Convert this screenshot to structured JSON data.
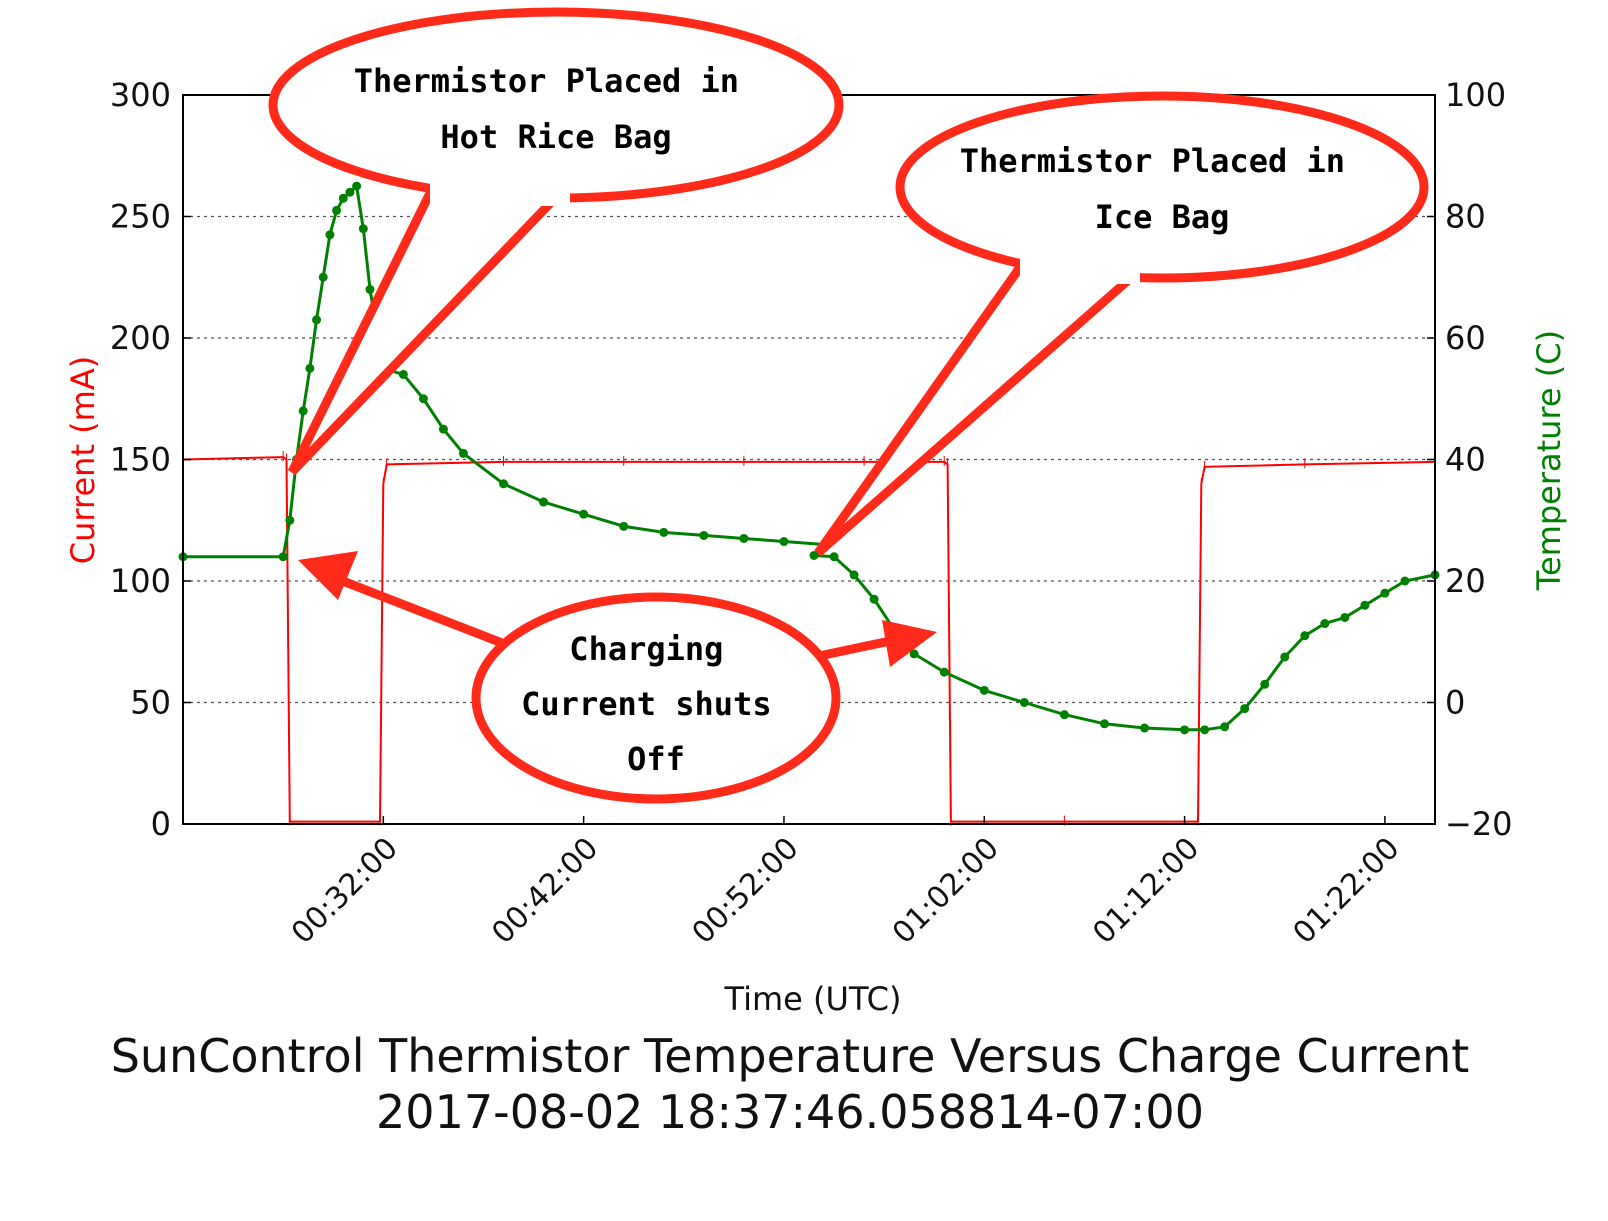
{
  "chart_data": {
    "type": "line",
    "title": "SunControl Thermistor Temperature Versus Charge Current",
    "subtitle": "2017-08-02 18:37:46.058814-07:00",
    "xlabel": "Time (UTC)",
    "ylabel_left": "Current (mA)",
    "ylabel_right": "Temperature (C)",
    "xlim": [
      "00:22:00",
      "01:24:30"
    ],
    "ylim_left": [
      0,
      300
    ],
    "ylim_right": [
      -20,
      100
    ],
    "xticks": [
      "00:32:00",
      "00:42:00",
      "00:52:00",
      "01:02:00",
      "01:12:00",
      "01:22:00"
    ],
    "yticks_left": [
      "0",
      "50",
      "100",
      "150",
      "200",
      "250",
      "300"
    ],
    "yticks_right": [
      "−20",
      "0",
      "20",
      "40",
      "60",
      "80",
      "100"
    ],
    "grid": true,
    "colors": {
      "current": "#ff0000",
      "temperature": "#008000",
      "callout_border": "#ff2a1a"
    },
    "series": [
      {
        "name": "Current (mA)",
        "axis": "left",
        "x": [
          "00:22:00",
          "00:27:00",
          "00:27:10",
          "00:27:20",
          "00:31:50",
          "00:32:00",
          "00:32:10",
          "00:38:00",
          "00:44:00",
          "00:50:00",
          "00:56:00",
          "01:00:00",
          "01:00:10",
          "01:00:20",
          "01:06:00",
          "01:12:40",
          "01:12:50",
          "01:13:00",
          "01:18:00",
          "01:24:30"
        ],
        "values": [
          150,
          151,
          150,
          1,
          1,
          140,
          148,
          149,
          149,
          149,
          149,
          149,
          148,
          1,
          1,
          1,
          140,
          147,
          148,
          149
        ]
      },
      {
        "name": "Temperature (C)",
        "axis": "right",
        "x": [
          "00:22:00",
          "00:27:00",
          "00:27:20",
          "00:27:40",
          "00:28:00",
          "00:28:20",
          "00:28:40",
          "00:29:00",
          "00:29:20",
          "00:29:40",
          "00:30:00",
          "00:30:20",
          "00:30:40",
          "00:31:00",
          "00:31:20",
          "00:32:00",
          "00:33:00",
          "00:34:00",
          "00:35:00",
          "00:36:00",
          "00:38:00",
          "00:40:00",
          "00:42:00",
          "00:44:00",
          "00:46:00",
          "00:48:00",
          "00:50:00",
          "00:52:00",
          "00:54:00",
          "00:53:30",
          "00:54:30",
          "00:55:30",
          "00:56:30",
          "00:57:30",
          "00:58:30",
          "01:00:00",
          "01:02:00",
          "01:04:00",
          "01:06:00",
          "01:08:00",
          "01:10:00",
          "01:12:00",
          "01:13:00",
          "01:14:00",
          "01:15:00",
          "01:16:00",
          "01:17:00",
          "01:18:00",
          "01:19:00",
          "01:20:00",
          "01:21:00",
          "01:22:00",
          "01:23:00",
          "01:24:30"
        ],
        "values": [
          24,
          24,
          30,
          40,
          48,
          55,
          63,
          70,
          77,
          81,
          83,
          84,
          85,
          78,
          68,
          55,
          54,
          50,
          45,
          41,
          36,
          33,
          31,
          29,
          28,
          27.5,
          27,
          26.5,
          26,
          24.2,
          24,
          21,
          17,
          12,
          8,
          5,
          2,
          0,
          -2,
          -3.5,
          -4.2,
          -4.5,
          -4.5,
          -4,
          -1,
          3,
          7.5,
          11,
          13,
          14,
          16,
          18,
          20,
          21
        ]
      }
    ],
    "annotations": [
      "Thermistor Placed in Hot Rice Bag",
      "Thermistor Placed in Ice Bag",
      "Charging Current shuts Off"
    ]
  }
}
